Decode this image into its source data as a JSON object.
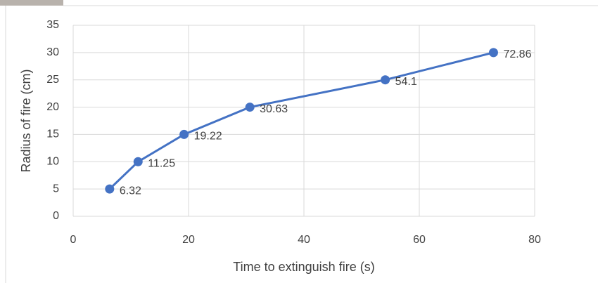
{
  "chart_data": {
    "type": "line",
    "x_label": "Time to extinguish fire (s)",
    "y_label": "Radius of fire (cm)",
    "x": [
      6.32,
      11.25,
      19.22,
      30.63,
      54.1,
      72.86
    ],
    "values": [
      5,
      10,
      15,
      20,
      25,
      30
    ],
    "color": "#4472c4",
    "xlim": [
      0,
      80
    ],
    "xticks": [
      0,
      20,
      40,
      60,
      80
    ],
    "ylim": [
      0,
      35
    ],
    "yticks": [
      0,
      5,
      10,
      15,
      20,
      25,
      30,
      35
    ],
    "grid": true
  }
}
